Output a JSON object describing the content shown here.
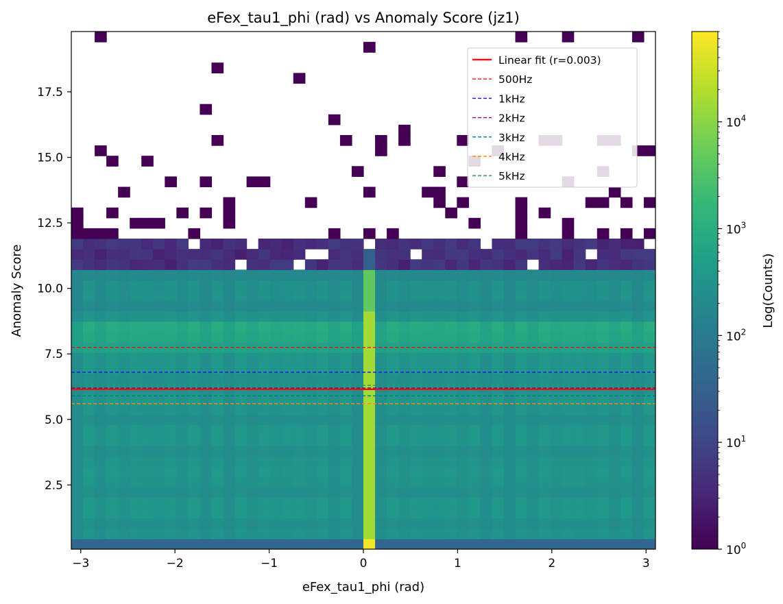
{
  "chart_data": {
    "type": "heatmap",
    "title": "eFex_tau1_phi (rad) vs Anomaly Score (jz1)",
    "xlabel": "eFex_tau1_phi (rad)",
    "ylabel": "Anomaly Score",
    "colorbar_label": "Log(Counts)",
    "colormap": "viridis",
    "color_scale": "log",
    "color_range": [
      1,
      70000
    ],
    "xlim": [
      -3.1,
      3.1
    ],
    "ylim": [
      0.05,
      19.8
    ],
    "x_ticks": [
      -3,
      -2,
      -1,
      0,
      1,
      2,
      3
    ],
    "x_tick_labels": [
      "−3",
      "−2",
      "−1",
      "0",
      "1",
      "2",
      "3"
    ],
    "y_ticks": [
      2.5,
      5.0,
      7.5,
      10.0,
      12.5,
      15.0,
      17.5
    ],
    "y_tick_labels": [
      "2.5",
      "5.0",
      "7.5",
      "10.0",
      "12.5",
      "15.0",
      "17.5"
    ],
    "colorbar_ticks": [
      1,
      10,
      100,
      1000,
      10000
    ],
    "colorbar_tick_labels": [
      {
        "base": "10",
        "exp": "0"
      },
      {
        "base": "10",
        "exp": "1"
      },
      {
        "base": "10",
        "exp": "2"
      },
      {
        "base": "10",
        "exp": "3"
      },
      {
        "base": "10",
        "exp": "4"
      }
    ],
    "grid": false,
    "bins": {
      "x": 50,
      "y": 50
    },
    "features": {
      "dense_region_top": 10.7,
      "sparse_band_top": 11.9,
      "hot_column_x": [
        0.0,
        0.12
      ],
      "hot_column_counts": 15000,
      "background_counts": 300,
      "sparse_cells": [
        {
          "x": -2.8,
          "y": 19.6
        },
        {
          "x": 0.07,
          "y": 19.2
        },
        {
          "x": 1.67,
          "y": 19.6
        },
        {
          "x": 2.17,
          "y": 19.6
        },
        {
          "x": 2.92,
          "y": 19.6
        },
        {
          "x": -1.55,
          "y": 18.4
        },
        {
          "x": -0.68,
          "y": 18.0
        },
        {
          "x": -1.67,
          "y": 16.8
        },
        {
          "x": -0.3,
          "y": 16.4
        },
        {
          "x": 0.45,
          "y": 16.0
        },
        {
          "x": 0.45,
          "y": 15.6
        },
        {
          "x": -1.55,
          "y": 15.6
        },
        {
          "x": -0.18,
          "y": 15.6
        },
        {
          "x": 0.2,
          "y": 15.6
        },
        {
          "x": 0.2,
          "y": 15.2
        },
        {
          "x": -2.8,
          "y": 15.2
        },
        {
          "x": -2.68,
          "y": 14.8
        },
        {
          "x": -2.3,
          "y": 14.8
        },
        {
          "x": 2.92,
          "y": 15.2
        },
        {
          "x": 3.05,
          "y": 15.2
        },
        {
          "x": 1.05,
          "y": 15.6
        },
        {
          "x": -0.05,
          "y": 14.4
        },
        {
          "x": 0.8,
          "y": 14.4
        },
        {
          "x": -2.05,
          "y": 14.0
        },
        {
          "x": -1.67,
          "y": 14.0
        },
        {
          "x": -1.05,
          "y": 14.0
        },
        {
          "x": -1.18,
          "y": 14.0
        },
        {
          "x": 1.05,
          "y": 14.0
        },
        {
          "x": -2.55,
          "y": 13.6
        },
        {
          "x": 0.07,
          "y": 13.6
        },
        {
          "x": 0.67,
          "y": 13.6
        },
        {
          "x": 0.8,
          "y": 13.6
        },
        {
          "x": 2.67,
          "y": 13.6
        },
        {
          "x": -1.42,
          "y": 13.2
        },
        {
          "x": -0.55,
          "y": 13.2
        },
        {
          "x": 0.8,
          "y": 13.2
        },
        {
          "x": 1.05,
          "y": 13.2
        },
        {
          "x": 1.67,
          "y": 13.2
        },
        {
          "x": 2.42,
          "y": 13.2
        },
        {
          "x": 2.55,
          "y": 13.2
        },
        {
          "x": 2.8,
          "y": 13.2
        },
        {
          "x": 3.05,
          "y": 13.2
        },
        {
          "x": -3.05,
          "y": 12.8
        },
        {
          "x": -2.68,
          "y": 12.8
        },
        {
          "x": -1.92,
          "y": 12.8
        },
        {
          "x": -1.67,
          "y": 12.8
        },
        {
          "x": -1.42,
          "y": 12.8
        },
        {
          "x": 0.92,
          "y": 12.8
        },
        {
          "x": 1.67,
          "y": 12.8
        },
        {
          "x": 1.92,
          "y": 12.8
        },
        {
          "x": -3.05,
          "y": 12.4
        },
        {
          "x": -2.42,
          "y": 12.4
        },
        {
          "x": -2.3,
          "y": 12.4
        },
        {
          "x": -2.18,
          "y": 12.4
        },
        {
          "x": -1.42,
          "y": 12.4
        },
        {
          "x": 1.17,
          "y": 12.4
        },
        {
          "x": 1.67,
          "y": 12.4
        },
        {
          "x": 2.17,
          "y": 12.4
        },
        {
          "x": -3.05,
          "y": 12.0
        },
        {
          "x": -2.92,
          "y": 12.0
        },
        {
          "x": -2.8,
          "y": 12.0
        },
        {
          "x": -2.68,
          "y": 12.0
        },
        {
          "x": -1.8,
          "y": 12.0
        },
        {
          "x": -0.3,
          "y": 12.0
        },
        {
          "x": 0.07,
          "y": 12.0
        },
        {
          "x": 0.32,
          "y": 12.0
        },
        {
          "x": 1.67,
          "y": 12.0
        },
        {
          "x": 2.17,
          "y": 12.0
        },
        {
          "x": 2.55,
          "y": 12.0
        },
        {
          "x": 2.8,
          "y": 12.0
        },
        {
          "x": 3.05,
          "y": 12.0
        },
        {
          "x": 2.55,
          "y": 15.6
        },
        {
          "x": 2.67,
          "y": 15.6
        },
        {
          "x": 1.92,
          "y": 15.6
        },
        {
          "x": 2.05,
          "y": 15.6
        },
        {
          "x": 1.42,
          "y": 15.2
        },
        {
          "x": 1.17,
          "y": 14.8
        },
        {
          "x": 2.17,
          "y": 14.0
        },
        {
          "x": 2.55,
          "y": 14.4
        }
      ],
      "sparse_cell_counts": 1
    },
    "series": [
      {
        "name": "Linear fit (r=0.003)",
        "type": "line",
        "style": "solid",
        "color": "#ee1111",
        "y": 6.15
      },
      {
        "name": "500Hz",
        "type": "hline",
        "style": "dashed",
        "color": "#ee1111",
        "y": 7.75
      },
      {
        "name": "1kHz",
        "type": "hline",
        "style": "dashed",
        "color": "#1111ee",
        "y": 6.8
      },
      {
        "name": "2kHz",
        "type": "hline",
        "style": "dashed",
        "color": "#7f007f",
        "y": 6.2
      },
      {
        "name": "3kHz",
        "type": "hline",
        "style": "dashed",
        "color": "#008080",
        "y": 5.9
      },
      {
        "name": "4kHz",
        "type": "hline",
        "style": "dashed",
        "color": "#ff8c00",
        "y": 5.6
      },
      {
        "name": "5kHz",
        "type": "hline",
        "style": "dashed",
        "color": "#2e8b57",
        "y": 6.3
      }
    ],
    "legend_position": "top-right"
  }
}
